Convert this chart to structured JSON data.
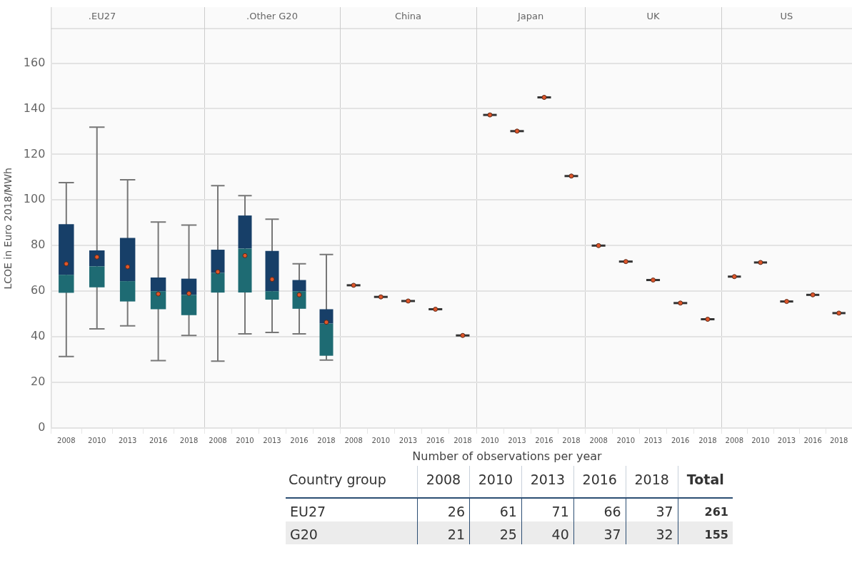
{
  "chart_data": [
    {
      "type": "box",
      "title": ".EU27",
      "ylabel": "LCOE in Euro 2018/MWh",
      "categories": [
        "2008",
        "2010",
        "2013",
        "2016",
        "2018"
      ],
      "ylim": [
        0,
        175
      ],
      "yticks": [
        0,
        20,
        40,
        60,
        80,
        100,
        120,
        140,
        160
      ],
      "grid": "y",
      "legend": false,
      "series": [
        {
          "color": "#1e6b73",
          "boxes": [
            {
              "low": 31.4,
              "q1": 59.3,
              "median": 67.2,
              "q3": 89.4,
              "high": 107.6,
              "mean": 72
            },
            {
              "low": 43.5,
              "q1": 61.7,
              "median": 70.9,
              "q3": 77.9,
              "high": 131.9,
              "mean": 75
            },
            {
              "low": 44.8,
              "q1": 55.5,
              "median": 64.4,
              "q3": 83.4,
              "high": 108.9,
              "mean": 70.7
            },
            {
              "low": 29.6,
              "q1": 52.1,
              "median": 60,
              "q3": 66,
              "high": 90.3,
              "mean": 58.8
            },
            {
              "low": 40.6,
              "q1": 49.5,
              "median": 58.4,
              "q3": 65.5,
              "high": 89,
              "mean": 59
            }
          ]
        }
      ]
    },
    {
      "type": "box",
      "title": ".Other G20",
      "categories": [
        "2008",
        "2010",
        "2013",
        "2016",
        "2018"
      ],
      "ylim": [
        0,
        175
      ],
      "yticks": [
        0,
        20,
        40,
        60,
        80,
        100,
        120,
        140,
        160
      ],
      "grid": "y",
      "legend": false,
      "tick_labels": "x",
      "series": [
        {
          "color": "#1e6b73",
          "boxes": [
            {
              "low": 29.3,
              "q1": 59.4,
              "median": 68,
              "q3": 78.2,
              "high": 106.3,
              "mean": 68.5
            },
            {
              "low": 41.3,
              "q1": 59.4,
              "median": 78.7,
              "q3": 93.2,
              "high": 101.9,
              "mean": 75.6
            },
            {
              "low": 41.9,
              "q1": 56.3,
              "median": 60,
              "q3": 77.7,
              "high": 91.6,
              "mean": 65.2
            },
            {
              "low": 41.3,
              "q1": 52.3,
              "median": 60,
              "q3": 64.9,
              "high": 72,
              "mean": 58.4
            },
            {
              "low": 29.8,
              "q1": 31.7,
              "median": 45.8,
              "q3": 52.1,
              "high": 76.1,
              "mean": 46.4
            }
          ]
        }
      ]
    },
    {
      "type": "box",
      "title": "China",
      "categories": [
        "2008",
        "2010",
        "2013",
        "2016",
        "2018"
      ],
      "ylim": [
        0,
        175
      ],
      "yticks": [
        0,
        20,
        40,
        60,
        80,
        100,
        120,
        140,
        160
      ],
      "grid": "y",
      "legend": false,
      "tick_labels": "x",
      "series": [
        {
          "color": "#333333",
          "boxes": [
            {
              "low": 62.6,
              "q1": 62.6,
              "median": 62.6,
              "q3": 62.6,
              "high": 62.6,
              "mean": 62.6
            },
            {
              "low": 57.5,
              "q1": 57.5,
              "median": 57.5,
              "q3": 57.5,
              "high": 57.5,
              "mean": 57.5
            },
            {
              "low": 55.7,
              "q1": 55.7,
              "median": 55.7,
              "q3": 55.7,
              "high": 55.7,
              "mean": 55.7
            },
            {
              "low": 52.1,
              "q1": 52.1,
              "median": 52.1,
              "q3": 52.1,
              "high": 52.1,
              "mean": 52.1
            },
            {
              "low": 40.6,
              "q1": 40.6,
              "median": 40.6,
              "q3": 40.6,
              "high": 40.6,
              "mean": 40.6
            }
          ]
        }
      ]
    },
    {
      "type": "box",
      "title": "Japan",
      "categories": [
        "2010",
        "2013",
        "2016",
        "2018"
      ],
      "ylim": [
        0,
        175
      ],
      "yticks": [
        0,
        20,
        40,
        60,
        80,
        100,
        120,
        140,
        160
      ],
      "grid": "y",
      "legend": false,
      "tick_labels": "x",
      "series": [
        {
          "color": "#333333",
          "boxes": [
            {
              "low": 137.3,
              "q1": 137.3,
              "median": 137.3,
              "q3": 137.3,
              "high": 137.3,
              "mean": 137.3
            },
            {
              "low": 130.2,
              "q1": 130.2,
              "median": 130.2,
              "q3": 130.2,
              "high": 130.2,
              "mean": 130.2
            },
            {
              "low": 145,
              "q1": 145,
              "median": 145,
              "q3": 145,
              "high": 145,
              "mean": 145
            },
            {
              "low": 110.5,
              "q1": 110.5,
              "median": 110.5,
              "q3": 110.5,
              "high": 110.5,
              "mean": 110.5
            }
          ]
        }
      ]
    },
    {
      "type": "box",
      "title": "UK",
      "categories": [
        "2008",
        "2010",
        "2013",
        "2016",
        "2018"
      ],
      "ylim": [
        0,
        175
      ],
      "yticks": [
        0,
        20,
        40,
        60,
        80,
        100,
        120,
        140,
        160
      ],
      "grid": "y",
      "legend": false,
      "tick_labels": "x",
      "series": [
        {
          "color": "#333333",
          "boxes": [
            {
              "low": 80,
              "q1": 80,
              "median": 80,
              "q3": 80,
              "high": 80,
              "mean": 80
            },
            {
              "low": 73,
              "q1": 73,
              "median": 73,
              "q3": 73,
              "high": 73,
              "mean": 73
            },
            {
              "low": 64.9,
              "q1": 64.9,
              "median": 64.9,
              "q3": 64.9,
              "high": 64.9,
              "mean": 64.9
            },
            {
              "low": 54.8,
              "q1": 54.8,
              "median": 54.8,
              "q3": 54.8,
              "high": 54.8,
              "mean": 54.8
            },
            {
              "low": 47.7,
              "q1": 47.7,
              "median": 47.7,
              "q3": 47.7,
              "high": 47.7,
              "mean": 47.7
            }
          ]
        }
      ]
    },
    {
      "type": "box",
      "title": "US",
      "categories": [
        "2008",
        "2010",
        "2013",
        "2016",
        "2018"
      ],
      "ylim": [
        0,
        175
      ],
      "yticks": [
        0,
        20,
        40,
        60,
        80,
        100,
        120,
        140,
        160
      ],
      "grid": "y",
      "legend": false,
      "tick_labels": "x",
      "series": [
        {
          "color": "#333333",
          "boxes": [
            {
              "low": 66.4,
              "q1": 66.4,
              "median": 66.4,
              "q3": 66.4,
              "high": 66.4,
              "mean": 66.4
            },
            {
              "low": 72.6,
              "q1": 72.6,
              "median": 72.6,
              "q3": 72.6,
              "high": 72.6,
              "mean": 72.6
            },
            {
              "low": 55.5,
              "q1": 55.5,
              "median": 55.5,
              "q3": 55.5,
              "high": 55.5,
              "mean": 55.5
            },
            {
              "low": 58.4,
              "q1": 58.4,
              "median": 58.4,
              "q3": 58.4,
              "high": 58.4,
              "mean": 58.4
            },
            {
              "low": 50.4,
              "q1": 50.4,
              "median": 50.4,
              "q3": 50.4,
              "high": 50.4,
              "mean": 50.4
            }
          ]
        }
      ]
    },
    {
      "type": "heatmap",
      "title": "Number of observations per year",
      "ylabel": "Country group",
      "categories": [
        "2008",
        "2010",
        "2013",
        "2016",
        "2018",
        "Total"
      ],
      "y_categories": [
        "EU27",
        "G20"
      ],
      "data_labels": true,
      "cells": [
        [
          26,
          61,
          71,
          66,
          37,
          261
        ],
        [
          21,
          25,
          40,
          37,
          32,
          155
        ]
      ]
    }
  ]
}
